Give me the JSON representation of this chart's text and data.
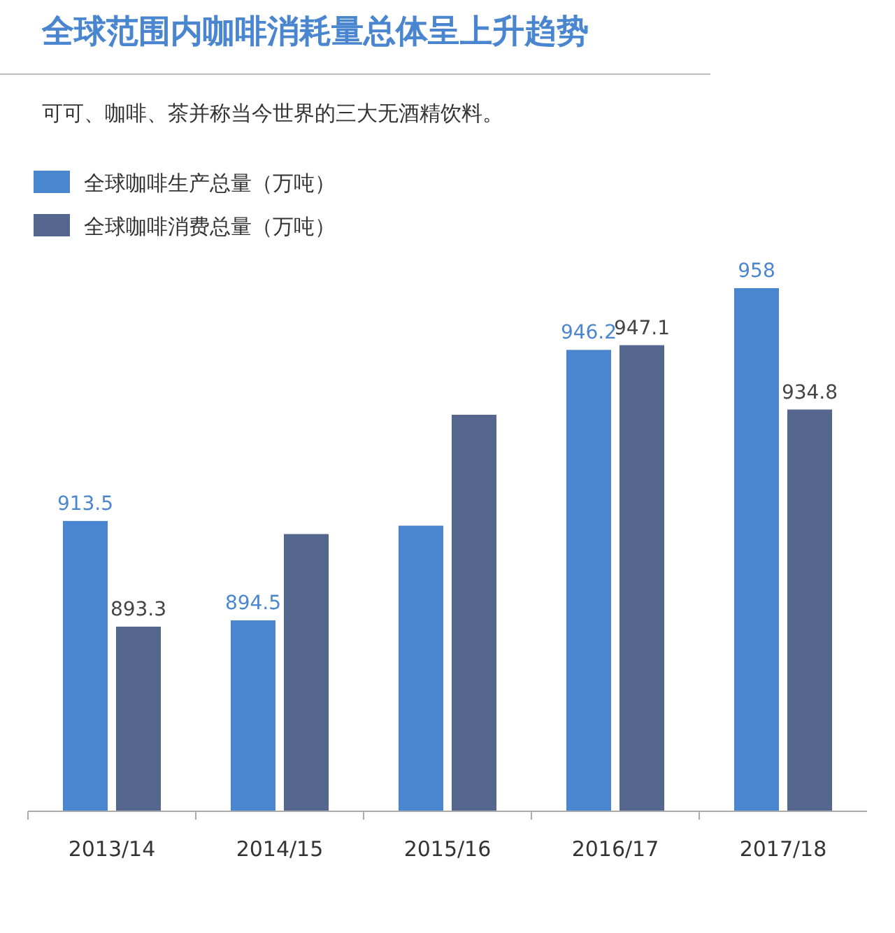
{
  "chart_data": {
    "type": "bar",
    "title": "全球范围内咖啡消耗量总体呈上升趋势",
    "subtitle": "可可、咖啡、茶并称当今世界的三大无酒精饮料。",
    "categories": [
      "2013/14",
      "2014/15",
      "2015/16",
      "2016/17",
      "2017/18"
    ],
    "series": [
      {
        "name": "全球咖啡生产总量（万吨）",
        "color": "#4a86d0",
        "values": [
          913.5,
          894.5,
          912.6,
          946.2,
          958
        ],
        "value_labels": [
          "913.5",
          "894.5",
          null,
          "946.2",
          "958"
        ]
      },
      {
        "name": "全球咖啡消费总量（万吨）",
        "color": "#55668f",
        "values": [
          893.3,
          911,
          933.8,
          947.1,
          934.8
        ],
        "value_labels": [
          "893.3",
          null,
          null,
          "947.1",
          "934.8"
        ]
      }
    ],
    "ylim": [
      858,
      958
    ],
    "tick_labels": "x",
    "legend": "top left"
  }
}
